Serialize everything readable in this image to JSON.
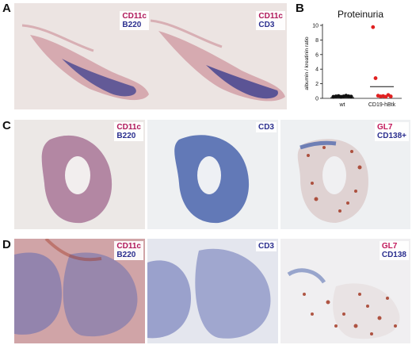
{
  "panels": {
    "A": "A",
    "B": "B",
    "C": "C",
    "D": "D"
  },
  "labels": {
    "a1": [
      {
        "text": "CD11c",
        "color": "#b0185a"
      },
      {
        "text": "B220",
        "color": "#2b2f8f"
      }
    ],
    "a2": [
      {
        "text": "CD11c",
        "color": "#b0185a"
      },
      {
        "text": "CD3",
        "color": "#2b2f8f"
      }
    ],
    "c1": [
      {
        "text": "CD11c",
        "color": "#b0185a"
      },
      {
        "text": "B220",
        "color": "#2b2f8f"
      }
    ],
    "c2": [
      {
        "text": "CD3",
        "color": "#2b2f8f"
      }
    ],
    "c3": [
      {
        "text": "GL7",
        "color": "#c2185b"
      },
      {
        "text": "CD138+",
        "color": "#2b2f8f"
      }
    ],
    "d1": [
      {
        "text": "CD11c",
        "color": "#b0185a"
      },
      {
        "text": "B220",
        "color": "#2b2f8f"
      }
    ],
    "d2": [
      {
        "text": "CD3",
        "color": "#2b2f8f"
      }
    ],
    "d3": [
      {
        "text": "GL7",
        "color": "#c2185b"
      },
      {
        "text": "CD138",
        "color": "#2b2f8f"
      }
    ]
  },
  "chart_data": {
    "type": "scatter",
    "title": "Proteinuria",
    "xlabel": "",
    "ylabel": "albumin / kreatinin ratio",
    "categories": [
      "wt",
      "CD19-hBtk"
    ],
    "ylim": [
      0,
      10
    ],
    "yticks": [
      0,
      2,
      4,
      6,
      8,
      10
    ],
    "series": [
      {
        "category": "wt",
        "color": "#111111",
        "values": [
          0.05,
          0.1,
          0.15,
          0.05,
          0.1,
          0.2,
          0.12,
          0.08
        ]
      },
      {
        "category": "CD19-hBtk",
        "color": "#e02020",
        "values": [
          9.6,
          2.6,
          0.2,
          0.1,
          0.15,
          0.05,
          0.3,
          0.1
        ]
      }
    ],
    "means": [
      0.1,
      1.6
    ]
  }
}
